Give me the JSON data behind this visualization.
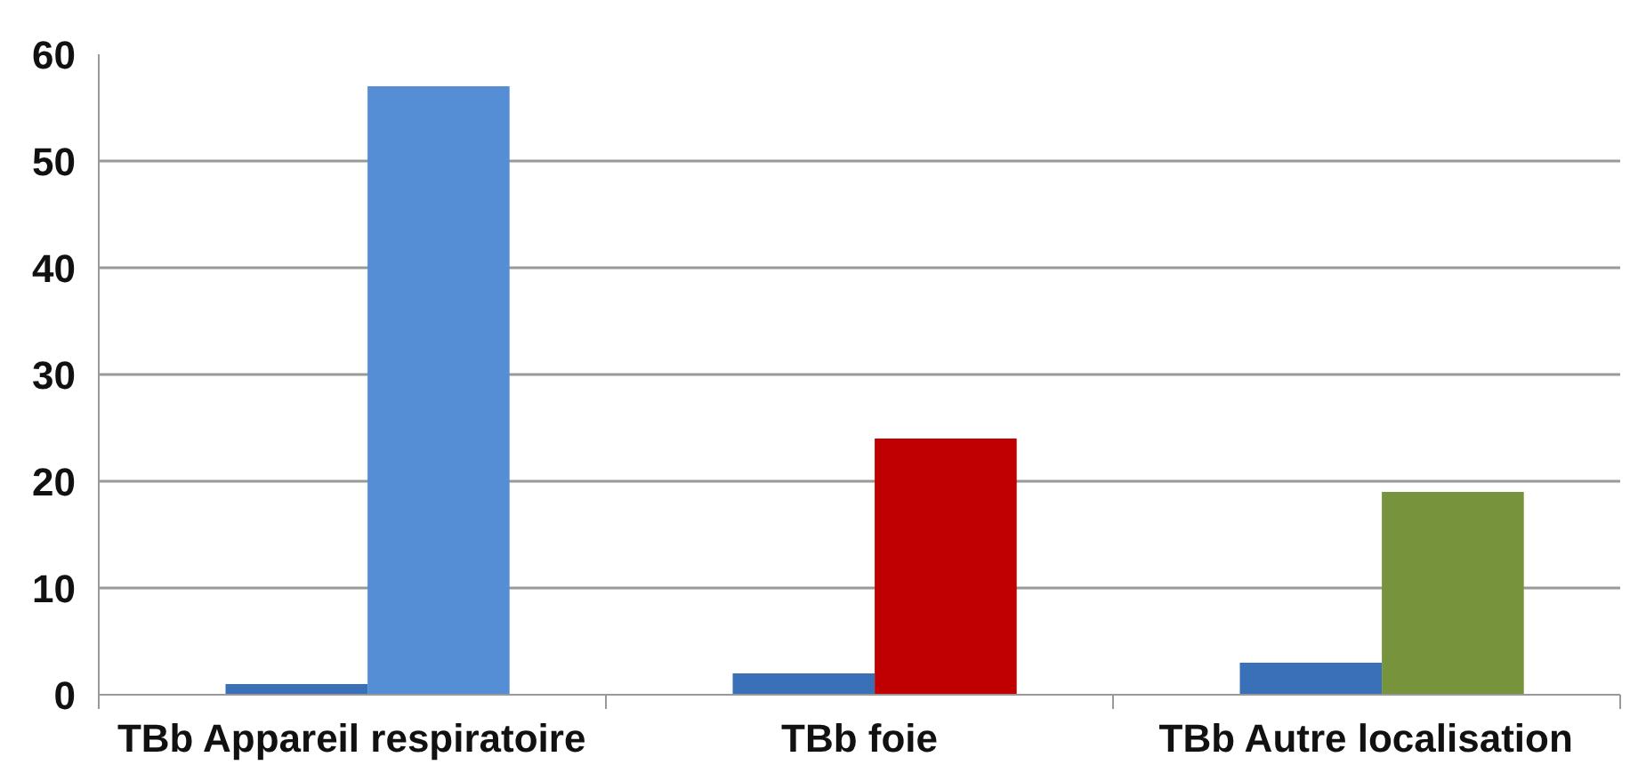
{
  "chart_data": {
    "type": "bar",
    "categories": [
      "TBb Appareil respiratoire",
      "TBb foie",
      "TBb Autre localisation"
    ],
    "series": [
      {
        "color": "#3a70b8",
        "values": [
          1,
          2,
          3
        ]
      },
      {
        "colors": [
          "#558ed5",
          "#c00000",
          "#77933c"
        ],
        "values": [
          57,
          24,
          19
        ]
      }
    ],
    "ylim": [
      0,
      60
    ],
    "yticks": [
      0,
      10,
      20,
      30,
      40,
      50,
      60
    ],
    "grid": "y"
  }
}
